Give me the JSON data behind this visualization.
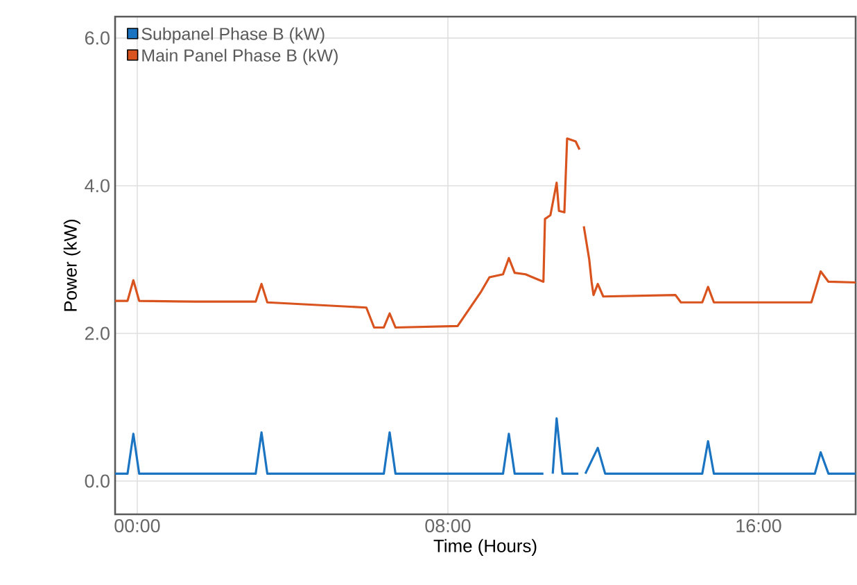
{
  "chart_data": {
    "type": "line",
    "xlabel": "Time (Hours)",
    "ylabel": "Power (kW)",
    "xlim": [
      -0.57,
      18.5
    ],
    "ylim": [
      -0.45,
      6.29
    ],
    "xticks": [
      {
        "value": 0,
        "label": "00:00"
      },
      {
        "value": 8,
        "label": "08:00"
      },
      {
        "value": 16,
        "label": "16:00"
      }
    ],
    "yticks": [
      {
        "value": 0,
        "label": "0.0"
      },
      {
        "value": 2,
        "label": "2.0"
      },
      {
        "value": 4,
        "label": "4.0"
      },
      {
        "value": 6,
        "label": "6.0"
      }
    ],
    "grid": true,
    "legend": "top left",
    "marker": "none",
    "line_style": "solid",
    "series": [
      {
        "name": "Subpanel Phase B (kW)",
        "color": "#1a74c2",
        "x": [
          -0.57,
          -0.25,
          -0.1,
          0.05,
          3.05,
          3.2,
          3.35,
          6.35,
          6.5,
          6.65,
          9.42,
          9.57,
          9.72,
          10.46,
          10.5,
          10.7,
          10.8,
          10.95,
          11.36,
          11.4,
          11.54,
          11.86,
          12.05,
          14.55,
          14.7,
          14.85,
          17.45,
          17.6,
          17.8,
          18.5
        ],
        "values": [
          0.1,
          0.1,
          0.64,
          0.1,
          0.1,
          0.66,
          0.1,
          0.1,
          0.66,
          0.1,
          0.1,
          0.64,
          0.1,
          0.1,
          null,
          0.1,
          0.85,
          0.1,
          0.1,
          null,
          0.1,
          0.45,
          0.1,
          0.1,
          0.54,
          0.1,
          0.1,
          0.39,
          0.1,
          0.1
        ]
      },
      {
        "name": "Main Panel Phase B (kW)",
        "color": "#d9531e",
        "x": [
          -0.57,
          -0.25,
          -0.1,
          0.05,
          1.5,
          3.05,
          3.2,
          3.35,
          5.9,
          6.1,
          6.35,
          6.5,
          6.65,
          8.25,
          8.86,
          9.07,
          9.42,
          9.57,
          9.72,
          10.0,
          10.46,
          10.5,
          10.64,
          10.8,
          10.86,
          11.0,
          11.07,
          11.29,
          11.39,
          11.45,
          11.5,
          11.64,
          11.7,
          11.75,
          11.86,
          12.0,
          13.86,
          14.0,
          14.55,
          14.7,
          14.85,
          17.36,
          17.6,
          17.8,
          18.5
        ],
        "values": [
          2.44,
          2.44,
          2.72,
          2.44,
          2.43,
          2.43,
          2.67,
          2.42,
          2.35,
          2.08,
          2.08,
          2.27,
          2.08,
          2.1,
          2.57,
          2.76,
          2.8,
          3.02,
          2.82,
          2.8,
          2.7,
          3.55,
          3.6,
          4.04,
          3.66,
          3.64,
          4.64,
          4.6,
          4.49,
          null,
          3.45,
          3.0,
          2.7,
          2.52,
          2.67,
          2.5,
          2.52,
          2.42,
          2.42,
          2.63,
          2.42,
          2.42,
          2.84,
          2.7,
          2.69
        ]
      }
    ]
  }
}
